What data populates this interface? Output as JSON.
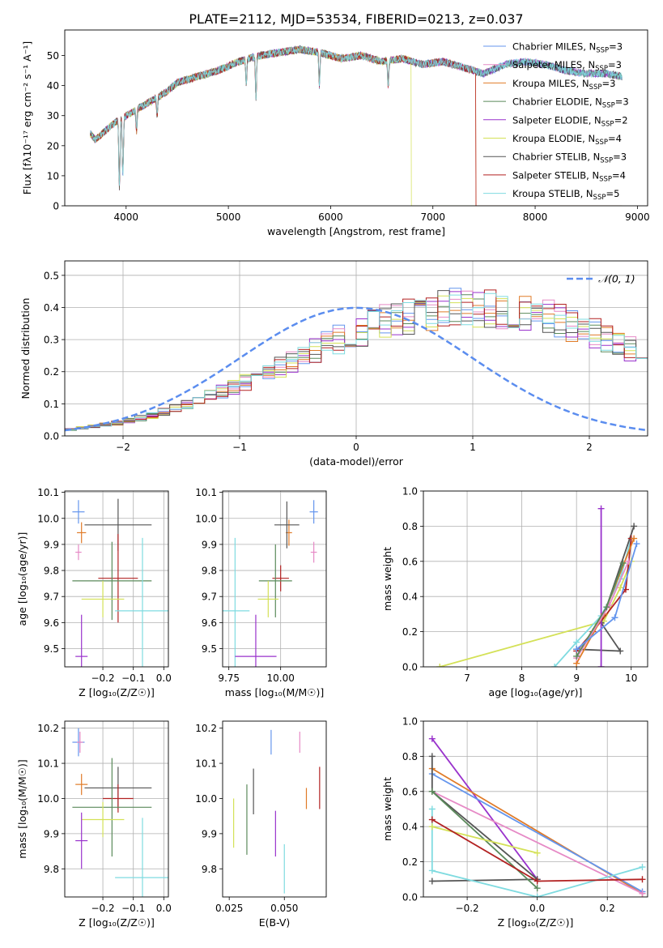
{
  "figure": {
    "title": "PLATE=2112, MJD=53534, FIBERID=0213, z=0.037"
  },
  "colors": {
    "chabrier_miles": "#6495ed",
    "salpeter_miles": "#e68ac6",
    "kroupa_miles": "#e07b28",
    "chabrier_elodie": "#5b8a5b",
    "salpeter_elodie": "#9932cc",
    "kroupa_elodie": "#d4e157",
    "chabrier_stelib": "#555555",
    "salpeter_stelib": "#b22222",
    "kroupa_stelib": "#7fdbe0",
    "normal": "#5b8def"
  },
  "chart_data": [
    {
      "id": "spectrum",
      "type": "line",
      "xlabel": "wavelength [Angstrom, rest frame]",
      "ylabel": "Flux [fλ10⁻¹⁷ erg cm⁻² s⁻¹ A⁻¹]",
      "xlim": [
        3400,
        9100
      ],
      "ylim": [
        0,
        58.5
      ],
      "xticks": [
        4000,
        5000,
        6000,
        7000,
        8000,
        9000
      ],
      "yticks": [
        0,
        10,
        20,
        30,
        40,
        50
      ],
      "legend_position": "top-right",
      "continuum": {
        "x": [
          3650,
          3700,
          3800,
          3900,
          4000,
          4100,
          4200,
          4300,
          4400,
          4500,
          4700,
          4900,
          5100,
          5300,
          5500,
          5700,
          5900,
          6100,
          6300,
          6500,
          6700,
          6900,
          7100,
          7300,
          7500,
          7700,
          7900,
          8100,
          8300,
          8500,
          8700,
          8850
        ],
        "y": [
          24,
          22,
          25,
          28,
          30,
          32,
          34,
          36,
          38,
          41,
          43,
          45,
          48,
          50,
          51,
          52,
          51,
          49,
          50,
          48,
          49,
          47,
          48,
          46,
          44,
          47,
          48,
          47,
          45,
          44,
          44,
          43
        ]
      },
      "dips": [
        {
          "x": 3934,
          "y": 6
        },
        {
          "x": 3968,
          "y": 10
        },
        {
          "x": 4102,
          "y": 25
        },
        {
          "x": 4304,
          "y": 30
        },
        {
          "x": 5175,
          "y": 41
        },
        {
          "x": 5270,
          "y": 36
        },
        {
          "x": 5890,
          "y": 40
        },
        {
          "x": 6563,
          "y": 40
        }
      ],
      "series": [
        {
          "name": "Chabrier MILES, N",
          "sub": "SSP",
          "n": "=3",
          "color_key": "chabrier_miles"
        },
        {
          "name": "Salpeter MILES, N",
          "sub": "SSP",
          "n": "=3",
          "color_key": "salpeter_miles"
        },
        {
          "name": "Kroupa MILES, N",
          "sub": "SSP",
          "n": "=3",
          "color_key": "kroupa_miles",
          "cutoff": 7420
        },
        {
          "name": "Chabrier ELODIE, N",
          "sub": "SSP",
          "n": "=3",
          "color_key": "chabrier_elodie"
        },
        {
          "name": "Salpeter ELODIE, N",
          "sub": "SSP",
          "n": "=2",
          "color_key": "salpeter_elodie"
        },
        {
          "name": "Kroupa ELODIE, N",
          "sub": "SSP",
          "n": "=4",
          "color_key": "kroupa_elodie",
          "cutoff": 6790
        },
        {
          "name": "Chabrier STELIB, N",
          "sub": "SSP",
          "n": "=3",
          "color_key": "chabrier_stelib"
        },
        {
          "name": "Salpeter STELIB, N",
          "sub": "SSP",
          "n": "=4",
          "color_key": "salpeter_stelib",
          "cutoff": 7420
        },
        {
          "name": "Kroupa STELIB, N",
          "sub": "SSP",
          "n": "=5",
          "color_key": "kroupa_stelib"
        }
      ]
    },
    {
      "id": "residuals",
      "type": "line",
      "xlabel": "(data-model)/error",
      "ylabel": "Normed distribution",
      "xlim": [
        -2.5,
        2.5
      ],
      "ylim": [
        0,
        0.545
      ],
      "xticks": [
        -2,
        -1,
        0,
        1,
        2
      ],
      "yticks": [
        0.0,
        0.1,
        0.2,
        0.3,
        0.4,
        0.5
      ],
      "grid": true,
      "legend": "𝒩(0, 1)",
      "legend_position": "top-right",
      "bin_width": 0.1,
      "bin_start": -2.5,
      "histogram": [
        0.02,
        0.025,
        0.03,
        0.035,
        0.04,
        0.048,
        0.055,
        0.064,
        0.074,
        0.085,
        0.097,
        0.11,
        0.123,
        0.137,
        0.152,
        0.168,
        0.184,
        0.2,
        0.217,
        0.234,
        0.251,
        0.268,
        0.285,
        0.3,
        0.316,
        0.33,
        0.343,
        0.356,
        0.367,
        0.376,
        0.384,
        0.39,
        0.395,
        0.398,
        0.4,
        0.4,
        0.398,
        0.395,
        0.39,
        0.384,
        0.376,
        0.367,
        0.356,
        0.343,
        0.33,
        0.316,
        0.3,
        0.285,
        0.268,
        0.251
      ]
    },
    {
      "id": "age_vs_Z",
      "type": "scatter",
      "xlabel": "Z [log₁₀(Z/Z☉)]",
      "ylabel": "age  [log₁₀(age/yr)]",
      "xlim": [
        -0.325,
        0.015
      ],
      "ylim": [
        9.43,
        10.105
      ],
      "xticks": [
        -0.2,
        -0.1,
        0.0
      ],
      "yticks": [
        9.5,
        9.6,
        9.7,
        9.8,
        9.9,
        10.0,
        10.1
      ],
      "grid": true,
      "points": [
        {
          "color_key": "chabrier_miles",
          "x": -0.28,
          "xerr": 0.02,
          "y": 10.025,
          "yerr": 0.045
        },
        {
          "color_key": "kroupa_miles",
          "x": -0.27,
          "xerr": 0.015,
          "y": 9.945,
          "yerr": 0.04
        },
        {
          "color_key": "salpeter_miles",
          "x": -0.28,
          "xerr": 0.01,
          "y": 9.87,
          "yerr": 0.03
        },
        {
          "color_key": "chabrier_stelib",
          "x": -0.15,
          "xerr": 0.11,
          "y": 9.975,
          "yerr": 0.1
        },
        {
          "color_key": "salpeter_stelib",
          "x": -0.15,
          "xerr": 0.065,
          "y": 9.77,
          "yerr": 0.17
        },
        {
          "color_key": "chabrier_elodie",
          "x": -0.17,
          "xerr": 0.13,
          "y": 9.76,
          "yerr": 0.15
        },
        {
          "color_key": "kroupa_elodie",
          "x": -0.2,
          "xerr": 0.07,
          "y": 9.69,
          "yerr": 0.07
        },
        {
          "color_key": "kroupa_stelib",
          "x": -0.07,
          "xerr": 0.09,
          "y": 9.645,
          "yerr": 0.28
        },
        {
          "color_key": "salpeter_elodie",
          "x": -0.27,
          "xerr": 0.02,
          "y": 9.47,
          "yerr": 0.16
        }
      ]
    },
    {
      "id": "age_vs_mass",
      "type": "scatter",
      "xlabel": "mass [log₁₀(M/M☉)]",
      "ylabel": "",
      "xlim": [
        9.72,
        10.22
      ],
      "ylim": [
        9.43,
        10.105
      ],
      "xticks": [
        9.75,
        10.0
      ],
      "yticks": [
        9.5,
        9.6,
        9.7,
        9.8,
        9.9,
        10.0,
        10.1
      ],
      "grid": true,
      "points": [
        {
          "color_key": "chabrier_miles",
          "x": 10.16,
          "xerr": 0.02,
          "y": 10.025,
          "yerr": 0.045
        },
        {
          "color_key": "kroupa_miles",
          "x": 10.04,
          "xerr": 0.015,
          "y": 9.945,
          "yerr": 0.05
        },
        {
          "color_key": "salpeter_miles",
          "x": 10.16,
          "xerr": 0.015,
          "y": 9.87,
          "yerr": 0.04
        },
        {
          "color_key": "chabrier_stelib",
          "x": 10.03,
          "xerr": 0.06,
          "y": 9.975,
          "yerr": 0.09
        },
        {
          "color_key": "salpeter_stelib",
          "x": 10.0,
          "xerr": 0.04,
          "y": 9.77,
          "yerr": 0.05
        },
        {
          "color_key": "chabrier_elodie",
          "x": 9.975,
          "xerr": 0.08,
          "y": 9.76,
          "yerr": 0.14
        },
        {
          "color_key": "kroupa_elodie",
          "x": 9.94,
          "xerr": 0.05,
          "y": 9.69,
          "yerr": 0.07
        },
        {
          "color_key": "kroupa_stelib",
          "x": 9.78,
          "xerr": 0.07,
          "y": 9.645,
          "yerr": 0.28
        },
        {
          "color_key": "salpeter_elodie",
          "x": 9.88,
          "xerr": 0.1,
          "y": 9.47,
          "yerr": 0.16
        }
      ]
    },
    {
      "id": "massweight_vs_age",
      "type": "line",
      "xlabel": "age  [log₁₀(age/yr)]",
      "ylabel": "mass weight",
      "xlim": [
        6.2,
        10.3
      ],
      "ylim": [
        0,
        1.0
      ],
      "xticks": [
        7,
        8,
        9,
        10
      ],
      "yticks": [
        0.0,
        0.2,
        0.4,
        0.6,
        0.8,
        1.0
      ],
      "grid": true,
      "lines": [
        {
          "color_key": "kroupa_elodie",
          "x": [
            6.5,
            9.5,
            9.8,
            10.0
          ],
          "y": [
            0.0,
            0.26,
            0.45,
            0.6
          ]
        },
        {
          "color_key": "kroupa_stelib",
          "x": [
            8.6,
            9.0,
            9.45,
            9.8,
            10.0
          ],
          "y": [
            0.0,
            0.14,
            0.29,
            0.5,
            0.73
          ]
        },
        {
          "color_key": "chabrier_stelib",
          "x": [
            9.0,
            9.8,
            9.45,
            10.05
          ],
          "y": [
            0.1,
            0.09,
            0.25,
            0.8
          ]
        },
        {
          "color_key": "salpeter_stelib",
          "x": [
            9.0,
            9.3,
            9.9,
            10.0
          ],
          "y": [
            0.09,
            0.2,
            0.44,
            0.73
          ]
        },
        {
          "color_key": "salpeter_elodie",
          "x": [
            9.45,
            9.45
          ],
          "y": [
            0.0,
            0.9
          ]
        },
        {
          "color_key": "kroupa_miles",
          "x": [
            9.0,
            9.5,
            10.05
          ],
          "y": [
            0.02,
            0.3,
            0.73
          ]
        },
        {
          "color_key": "salpeter_miles",
          "x": [
            9.0,
            9.6,
            9.95
          ],
          "y": [
            0.05,
            0.35,
            0.6
          ]
        },
        {
          "color_key": "chabrier_elodie",
          "x": [
            9.0,
            9.55,
            9.85
          ],
          "y": [
            0.06,
            0.34,
            0.59
          ]
        },
        {
          "color_key": "chabrier_miles",
          "x": [
            9.0,
            9.7,
            10.1
          ],
          "y": [
            0.1,
            0.28,
            0.7
          ]
        }
      ]
    },
    {
      "id": "mass_vs_Z",
      "type": "scatter",
      "xlabel": "Z [log₁₀(Z/Z☉)]",
      "ylabel": "mass [log₁₀(M/M☉)]",
      "xlim": [
        -0.325,
        0.015
      ],
      "ylim": [
        9.72,
        10.22
      ],
      "xticks": [
        -0.2,
        -0.1,
        0.0
      ],
      "yticks": [
        9.8,
        9.9,
        10.0,
        10.1,
        10.2
      ],
      "grid": true,
      "points": [
        {
          "color_key": "chabrier_miles",
          "x": -0.28,
          "xerr": 0.02,
          "y": 10.16,
          "yerr": 0.04
        },
        {
          "color_key": "salpeter_miles",
          "x": -0.275,
          "xerr": 0.01,
          "y": 10.16,
          "yerr": 0.03
        },
        {
          "color_key": "kroupa_miles",
          "x": -0.27,
          "xerr": 0.02,
          "y": 10.04,
          "yerr": 0.03
        },
        {
          "color_key": "chabrier_stelib",
          "x": -0.15,
          "xerr": 0.11,
          "y": 10.03,
          "yerr": 0.06
        },
        {
          "color_key": "salpeter_stelib",
          "x": -0.15,
          "xerr": 0.05,
          "y": 10.0,
          "yerr": 0.04
        },
        {
          "color_key": "chabrier_elodie",
          "x": -0.17,
          "xerr": 0.13,
          "y": 9.975,
          "yerr": 0.14
        },
        {
          "color_key": "kroupa_elodie",
          "x": -0.2,
          "xerr": 0.07,
          "y": 9.94,
          "yerr": 0.05
        },
        {
          "color_key": "salpeter_elodie",
          "x": -0.27,
          "xerr": 0.02,
          "y": 9.88,
          "yerr": 0.08
        },
        {
          "color_key": "kroupa_stelib",
          "x": -0.07,
          "xerr": 0.09,
          "y": 9.775,
          "yerr": 0.17
        }
      ]
    },
    {
      "id": "mass_vs_ebv",
      "type": "scatter",
      "xlabel": "E(B-V)",
      "ylabel": "",
      "xlim": [
        0.022,
        0.069
      ],
      "ylim": [
        9.72,
        10.22
      ],
      "xticks": [
        0.025,
        0.05
      ],
      "yticks": [
        9.8,
        9.9,
        10.0,
        10.1,
        10.2
      ],
      "grid": false,
      "points": [
        {
          "color_key": "chabrier_miles",
          "x": 0.044,
          "y": 10.16,
          "yerr": 0.035
        },
        {
          "color_key": "salpeter_miles",
          "x": 0.057,
          "y": 10.16,
          "yerr": 0.03
        },
        {
          "color_key": "kroupa_miles",
          "x": 0.06,
          "y": 10.0,
          "yerr": 0.03
        },
        {
          "color_key": "salpeter_stelib",
          "x": 0.066,
          "y": 10.03,
          "yerr": 0.06
        },
        {
          "color_key": "chabrier_stelib",
          "x": 0.036,
          "y": 10.02,
          "yerr": 0.065
        },
        {
          "color_key": "chabrier_elodie",
          "x": 0.033,
          "y": 9.94,
          "yerr": 0.1
        },
        {
          "color_key": "salpeter_elodie",
          "x": 0.046,
          "y": 9.9,
          "yerr": 0.065
        },
        {
          "color_key": "kroupa_elodie",
          "x": 0.027,
          "y": 9.93,
          "yerr": 0.07
        },
        {
          "color_key": "kroupa_stelib",
          "x": 0.05,
          "y": 9.8,
          "yerr": 0.07
        }
      ]
    },
    {
      "id": "massweight_vs_Z",
      "type": "line",
      "xlabel": "Z [log₁₀(Z/Z☉)]",
      "ylabel": "mass weight",
      "xlim": [
        -0.325,
        0.315
      ],
      "ylim": [
        0,
        1.0
      ],
      "xticks": [
        -0.2,
        0.0,
        0.2
      ],
      "yticks": [
        0.0,
        0.2,
        0.4,
        0.6,
        0.8,
        1.0
      ],
      "grid": true,
      "lines": [
        {
          "color_key": "salpeter_elodie",
          "x": [
            -0.3,
            0.0
          ],
          "y": [
            0.9,
            0.1
          ]
        },
        {
          "color_key": "kroupa_miles",
          "x": [
            -0.3,
            0.3
          ],
          "y": [
            0.73,
            0.02
          ]
        },
        {
          "color_key": "chabrier_miles",
          "x": [
            -0.3,
            0.3
          ],
          "y": [
            0.7,
            0.03
          ]
        },
        {
          "color_key": "salpeter_miles",
          "x": [
            -0.3,
            0.3
          ],
          "y": [
            0.6,
            0.02
          ]
        },
        {
          "color_key": "chabrier_stelib",
          "x": [
            -0.3,
            -0.3,
            0.0,
            -0.3
          ],
          "y": [
            0.8,
            0.6,
            0.1,
            0.09
          ]
        },
        {
          "color_key": "chabrier_elodie",
          "x": [
            -0.3,
            0.0
          ],
          "y": [
            0.6,
            0.05
          ]
        },
        {
          "color_key": "kroupa_stelib",
          "x": [
            -0.3,
            -0.3,
            0.0,
            0.3
          ],
          "y": [
            0.5,
            0.15,
            0.0,
            0.17
          ]
        },
        {
          "color_key": "kroupa_elodie",
          "x": [
            -0.3,
            0.0
          ],
          "y": [
            0.4,
            0.25
          ]
        },
        {
          "color_key": "salpeter_stelib",
          "x": [
            -0.3,
            0.0,
            0.3
          ],
          "y": [
            0.44,
            0.09,
            0.1
          ]
        }
      ]
    }
  ]
}
